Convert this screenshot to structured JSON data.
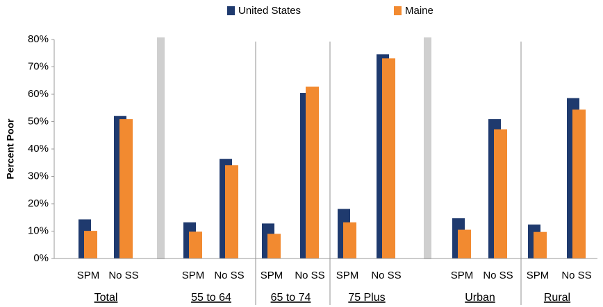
{
  "chart_data": {
    "type": "bar",
    "ylabel": "Percent Poor",
    "categories": [
      "SPM",
      "No SS",
      "SPM",
      "No SS",
      "SPM",
      "No SS",
      "SPM",
      "No SS",
      "SPM",
      "No SS",
      "SPM",
      "No SS"
    ],
    "groups": [
      "Total",
      "55 to 64",
      "65 to 74",
      "75 Plus",
      "Urban",
      "Rural"
    ],
    "series": [
      {
        "name": "United States",
        "color": "#1f3a6e",
        "values": [
          14.3,
          52.1,
          13.2,
          36.4,
          12.8,
          60.5,
          18.1,
          74.6,
          14.7,
          50.9,
          12.4,
          58.6
        ]
      },
      {
        "name": "Maine",
        "color": "#f28a30",
        "values": [
          10.1,
          50.9,
          9.8,
          34.1,
          9.0,
          62.8,
          13.2,
          73.1,
          10.5,
          47.2,
          9.7,
          54.4
        ]
      }
    ],
    "ylim": [
      0,
      80
    ],
    "yticks": [
      {
        "value": 0,
        "label": "0%"
      },
      {
        "value": 10,
        "label": "10%"
      },
      {
        "value": 20,
        "label": "20%"
      },
      {
        "value": 30,
        "label": "30%"
      },
      {
        "value": 40,
        "label": "40%"
      },
      {
        "value": 50,
        "label": "50%"
      },
      {
        "value": 60,
        "label": "60%"
      },
      {
        "value": 70,
        "label": "70%"
      },
      {
        "value": 80,
        "label": "80%"
      }
    ],
    "legend": "top"
  }
}
